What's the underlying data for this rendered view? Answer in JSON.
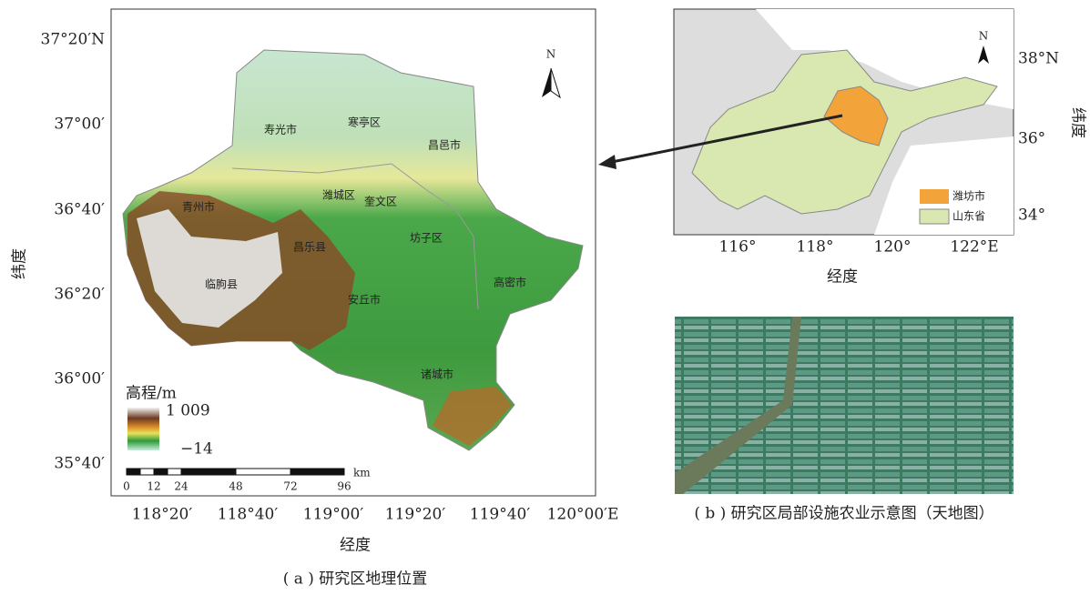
{
  "panel_a": {
    "lat_labels": [
      "37°20′N",
      "37°00′",
      "36°40′",
      "36°20′",
      "36°00′",
      "35°40′"
    ],
    "lon_labels": [
      "118°20′",
      "118°40′",
      "119°00′",
      "119°20′",
      "119°40′",
      "120°00′E"
    ],
    "x_title": "经度",
    "y_title": "纬度",
    "north": "N",
    "places": [
      "寿光市",
      "寒亭区",
      "昌邑市",
      "潍城区",
      "奎文区",
      "青州市",
      "昌乐县",
      "坊子区",
      "高密市",
      "临朐县",
      "安丘市",
      "诸城市"
    ],
    "legend": {
      "title": "高程/m",
      "max": "1 009",
      "min": "−14"
    },
    "scale": {
      "unit": "km",
      "ticks": [
        "0",
        "12",
        "24",
        "48",
        "72",
        "96"
      ]
    },
    "caption": "( a ) 研究区地理位置"
  },
  "inset": {
    "lat_labels": [
      "38°N",
      "36°",
      "34°"
    ],
    "lon_labels": [
      "116°",
      "118°",
      "120°",
      "122°E"
    ],
    "x_title": "经度",
    "y_title": "纬度",
    "north": "N",
    "legend": [
      "潍坊市",
      "山东省"
    ]
  },
  "panel_b": {
    "caption": "( b ) 研究区局部设施农业示意图（天地图）"
  }
}
